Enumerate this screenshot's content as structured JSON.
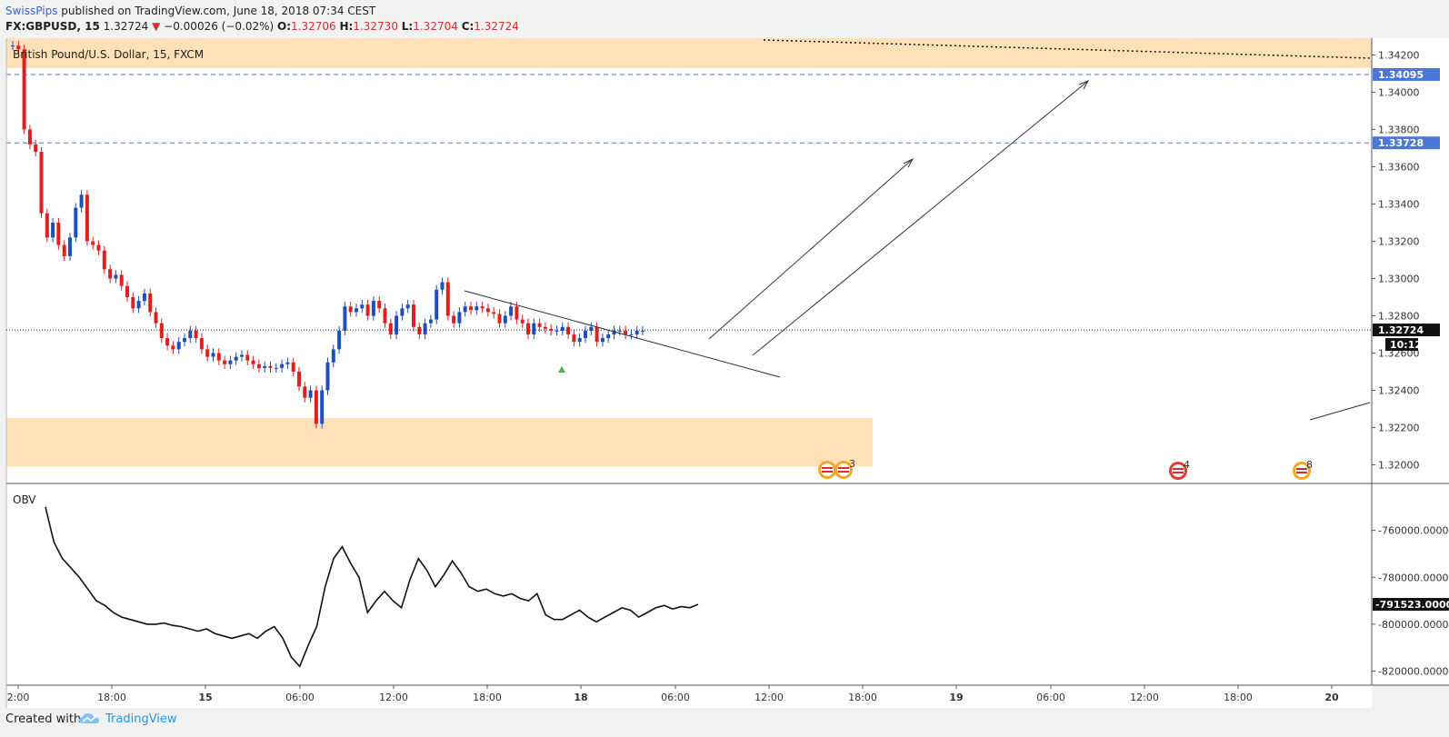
{
  "publish": {
    "author": "SwissPips",
    "text": "published on TradingView.com, June 18, 2018 07:34 CEST"
  },
  "header": {
    "symbol": "FX:GBPUSD, 15",
    "price": "1.32724",
    "change": "−0.00026 (−0.02%)",
    "open_label": "O:",
    "open": "1.32706",
    "high_label": "H:",
    "high": "1.32730",
    "low_label": "L:",
    "low": "1.32704",
    "close_label": "C:",
    "close": "1.32724"
  },
  "legend": {
    "title": "British Pound/U.S. Dollar, 15, FXCM"
  },
  "obv_label": "OBV",
  "footer": {
    "created": "Created with",
    "brand": "TradingView"
  },
  "colors": {
    "up": "#1f4fbf",
    "down": "#e02020",
    "zone": "#ffe0b7",
    "hline": "#4a78d8",
    "axis_bg": "#ffffff"
  },
  "chart_data": [
    {
      "type": "candlestick",
      "title": "British Pound/U.S. Dollar, 15, FXCM",
      "ylim": [
        1.319,
        1.3429
      ],
      "y_ticks": [
        "1.32000",
        "1.32200",
        "1.32400",
        "1.32600",
        "1.32800",
        "1.33000",
        "1.33200",
        "1.33400",
        "1.33600",
        "1.33800",
        "1.34000",
        "1.34200"
      ],
      "price_labels": {
        "upper_line": "1.34095",
        "lower_line": "1.33728",
        "last": "1.32724",
        "countdown": "10:12"
      },
      "horizontal_lines": [
        1.34095,
        1.33728
      ],
      "last_price": 1.32724,
      "zones": [
        {
          "name": "resistance-zone",
          "from": 1.3413,
          "to": 1.3429
        },
        {
          "name": "support-zone",
          "from": 1.3199,
          "to": 1.3225
        }
      ],
      "x_ticks": [
        "2:00",
        "18:00",
        "15",
        "06:00",
        "12:00",
        "18:00",
        "18",
        "06:00",
        "12:00",
        "18:00",
        "19",
        "06:00",
        "12:00",
        "18:00",
        "20"
      ],
      "series": [
        {
          "close": [
            1.3425,
            1.3423,
            1.338,
            1.3372,
            1.3368,
            1.3335,
            1.3322,
            1.333,
            1.3318,
            1.3312,
            1.3322,
            1.3338,
            1.3345,
            1.332,
            1.3318,
            1.3315,
            1.3305,
            1.33,
            1.3302,
            1.3296,
            1.329,
            1.3284,
            1.3288,
            1.3292,
            1.3282,
            1.3276,
            1.3268,
            1.3264,
            1.3262,
            1.3266,
            1.3268,
            1.3272,
            1.3268,
            1.3262,
            1.3258,
            1.326,
            1.3256,
            1.3254,
            1.3256,
            1.3258,
            1.3259,
            1.3256,
            1.3254,
            1.3252,
            1.3253,
            1.3252,
            1.3252,
            1.3254,
            1.3255,
            1.325,
            1.3242,
            1.3236,
            1.324,
            1.3222,
            1.324,
            1.3255,
            1.3262,
            1.3272,
            1.3285,
            1.3282,
            1.3284,
            1.3286,
            1.328,
            1.3288,
            1.3284,
            1.3276,
            1.327,
            1.328,
            1.3284,
            1.3286,
            1.3274,
            1.327,
            1.3276,
            1.3278,
            1.3294,
            1.3298,
            1.328,
            1.3276,
            1.3282,
            1.3285,
            1.3283,
            1.3285,
            1.3284,
            1.3282,
            1.3281,
            1.3276,
            1.328,
            1.3285,
            1.3278,
            1.3276,
            1.327,
            1.3276,
            1.3274,
            1.3273,
            1.3272,
            1.3272,
            1.3274,
            1.327,
            1.3266,
            1.3268,
            1.3272,
            1.3274,
            1.3266,
            1.3268,
            1.327,
            1.3272,
            1.3272,
            1.327,
            1.327,
            1.3272,
            1.3272
          ]
        }
      ]
    },
    {
      "type": "line",
      "title": "OBV",
      "ylim": [
        -826000,
        -740000
      ],
      "y_ticks": [
        "-760000.0000",
        "-780000.0000",
        "-800000.0000",
        "-820000.0000"
      ],
      "last_label": "-791523.0000",
      "series": [
        {
          "values": [
            -750000,
            -765000,
            -772000,
            -776000,
            -780000,
            -785000,
            -790000,
            -792000,
            -795000,
            -797000,
            -798000,
            -799000,
            -800000,
            -800000,
            -799500,
            -800500,
            -801000,
            -802000,
            -803000,
            -802000,
            -804000,
            -805000,
            -806000,
            -805000,
            -804000,
            -806000,
            -803000,
            -801000,
            -806000,
            -814000,
            -818000,
            -809000,
            -801000,
            -784000,
            -772000,
            -767000,
            -774000,
            -780000,
            -795000,
            -790000,
            -786000,
            -790000,
            -793000,
            -781000,
            -772000,
            -777000,
            -784000,
            -779000,
            -773000,
            -778000,
            -784000,
            -786000,
            -785000,
            -787000,
            -788000,
            -787000,
            -789000,
            -790000,
            -787000,
            -796000,
            -798000,
            -798000,
            -796000,
            -794000,
            -797000,
            -799000,
            -797000,
            -795000,
            -793000,
            -794000,
            -797000,
            -795000,
            -793000,
            -792000,
            -793500,
            -792500,
            -793000,
            -791523
          ]
        }
      ]
    }
  ]
}
